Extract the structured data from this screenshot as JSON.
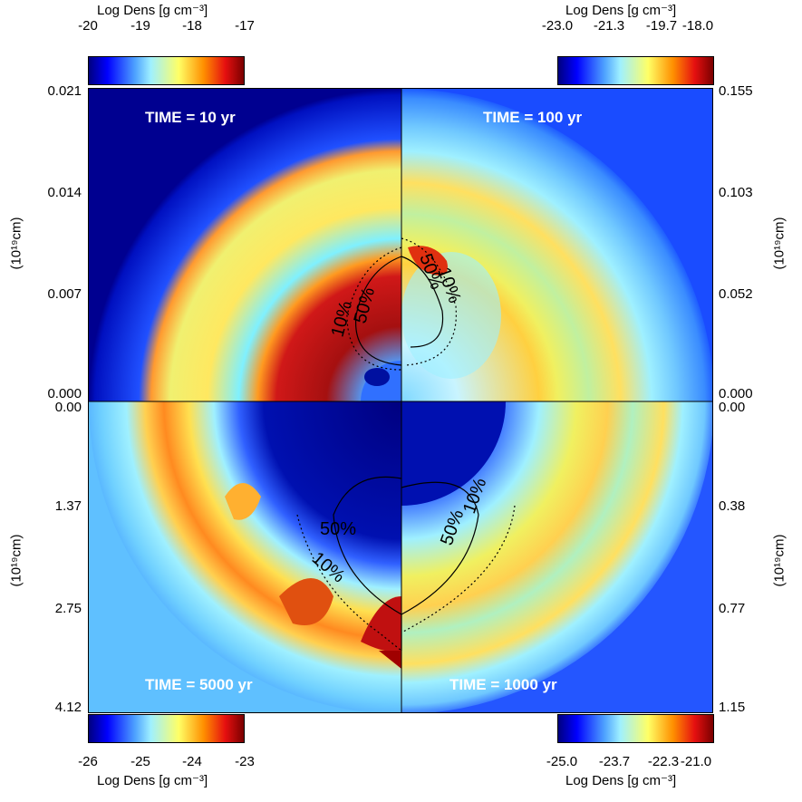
{
  "colorbars": {
    "top_left": {
      "title": "Log Dens [g cm⁻³]",
      "ticks": [
        "-20",
        "-19",
        "-18",
        "-17"
      ]
    },
    "top_right": {
      "title": "Log Dens [g cm⁻³]",
      "ticks": [
        "-23.0",
        "-21.3",
        "-19.7",
        "-18.0"
      ]
    },
    "bottom_left": {
      "title": "Log Dens [g cm⁻³]",
      "ticks": [
        "-26",
        "-25",
        "-24",
        "-23"
      ]
    },
    "bottom_right": {
      "title": "Log Dens [g cm⁻³]",
      "ticks": [
        "-25.0",
        "-23.7",
        "-22.3",
        "-21.0"
      ]
    }
  },
  "axes": {
    "left_top": {
      "label": "(10¹⁹cm)",
      "ticks": [
        "0.021",
        "0.014",
        "0.007",
        "0.000"
      ]
    },
    "left_bottom": {
      "label": "(10¹⁹cm)",
      "ticks": [
        "0.00",
        "1.37",
        "2.75",
        "4.12"
      ]
    },
    "right_top": {
      "label": "(10¹⁹cm)",
      "ticks": [
        "0.155",
        "0.103",
        "0.052",
        "0.000"
      ]
    },
    "right_bottom": {
      "label": "(10¹⁹cm)",
      "ticks": [
        "0.00",
        "0.38",
        "0.77",
        "1.15"
      ]
    }
  },
  "panels": {
    "top_left": {
      "time": "TIME = 10 yr",
      "contours": [
        "10%",
        "50%"
      ]
    },
    "top_right": {
      "time": "TIME = 100 yr",
      "contours": [
        "50%",
        "10%"
      ]
    },
    "bottom_left": {
      "time": "TIME = 5000 yr",
      "contours": [
        "50%",
        "10%"
      ]
    },
    "bottom_right": {
      "time": "TIME = 1000 yr",
      "contours": [
        "50%",
        "10%"
      ]
    }
  },
  "colormap": {
    "name": "jet",
    "stops": [
      "#00007f",
      "#0000ff",
      "#4fa3ff",
      "#9ff0ff",
      "#ffff66",
      "#ff9000",
      "#e61010",
      "#7a0000"
    ]
  }
}
